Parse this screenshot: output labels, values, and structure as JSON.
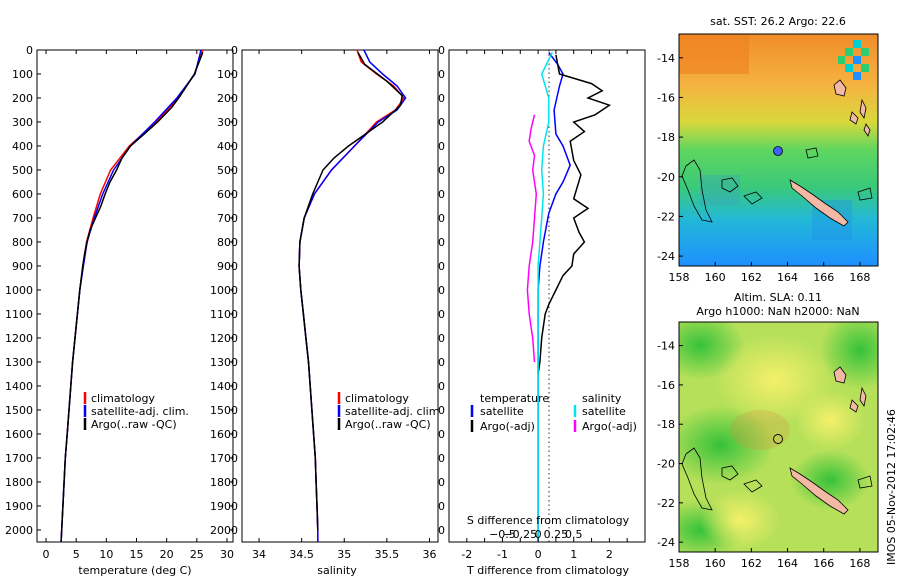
{
  "chart_data": {
    "type": "line",
    "depth": {
      "levels": [
        0,
        100,
        200,
        300,
        400,
        500,
        600,
        700,
        800,
        900,
        1000,
        1100,
        1200,
        1300,
        1400,
        1500,
        1600,
        1700,
        1800,
        1900,
        2000
      ],
      "ylim": [
        0,
        2050
      ]
    },
    "temperature": {
      "xlabel": "temperature (deg C)",
      "xlim": [
        -1.5,
        31
      ],
      "xticks": [
        0,
        5,
        10,
        15,
        20,
        25,
        30
      ],
      "legend": [
        "climatology",
        "satellite-adj. clim.",
        "Argo(..raw -QC)"
      ],
      "series": [
        {
          "name": "climatology",
          "color": "#ff0000",
          "points": [
            [
              26,
              0
            ],
            [
              24.6,
              100
            ],
            [
              22,
              200
            ],
            [
              18.2,
              300
            ],
            [
              13.8,
              400
            ],
            [
              10.7,
              500
            ],
            [
              9,
              600
            ],
            [
              7.8,
              700
            ],
            [
              6.7,
              800
            ],
            [
              6.1,
              900
            ],
            [
              5.6,
              1000
            ],
            [
              5.2,
              1100
            ],
            [
              4.8,
              1200
            ],
            [
              4.4,
              1300
            ],
            [
              4.1,
              1400
            ],
            [
              3.8,
              1500
            ],
            [
              3.5,
              1600
            ],
            [
              3.2,
              1700
            ],
            [
              3,
              1800
            ],
            [
              2.8,
              1900
            ],
            [
              2.6,
              2000
            ],
            [
              2.5,
              2050
            ]
          ]
        },
        {
          "name": "satellite-adj. clim.",
          "color": "#0000ff",
          "points": [
            [
              25.7,
              0
            ],
            [
              24.7,
              100
            ],
            [
              21.7,
              200
            ],
            [
              18,
              300
            ],
            [
              14,
              400
            ],
            [
              11.2,
              500
            ],
            [
              9.4,
              600
            ],
            [
              8,
              700
            ],
            [
              6.8,
              800
            ],
            [
              6.2,
              900
            ],
            [
              5.6,
              1000
            ],
            [
              5.2,
              1100
            ],
            [
              4.8,
              1200
            ],
            [
              4.4,
              1300
            ],
            [
              4.1,
              1400
            ],
            [
              3.8,
              1500
            ],
            [
              3.5,
              1600
            ],
            [
              3.2,
              1700
            ],
            [
              3,
              1800
            ],
            [
              2.8,
              1900
            ],
            [
              2.6,
              2000
            ],
            [
              2.5,
              2050
            ]
          ]
        },
        {
          "name": "Argo(..raw -QC)",
          "color": "#000000",
          "points": [
            [
              26,
              10
            ],
            [
              24.6,
              100
            ],
            [
              23.3,
              150
            ],
            [
              22,
              200
            ],
            [
              20.8,
              240
            ],
            [
              18.5,
              300
            ],
            [
              16.3,
              350
            ],
            [
              14,
              400
            ],
            [
              12.6,
              450
            ],
            [
              11.7,
              500
            ],
            [
              10.6,
              550
            ],
            [
              9.8,
              600
            ],
            [
              9.1,
              650
            ],
            [
              8.2,
              700
            ],
            [
              7.3,
              750
            ],
            [
              6.8,
              800
            ],
            [
              6.4,
              850
            ],
            [
              6.1,
              900
            ],
            [
              5.6,
              1000
            ],
            [
              5.2,
              1100
            ],
            [
              4.8,
              1200
            ],
            [
              4.4,
              1300
            ],
            [
              4.1,
              1400
            ],
            [
              3.8,
              1500
            ],
            [
              3.5,
              1600
            ],
            [
              3.2,
              1700
            ],
            [
              3,
              1800
            ],
            [
              2.8,
              1900
            ],
            [
              2.6,
              2000
            ],
            [
              2.5,
              2050
            ]
          ]
        }
      ]
    },
    "salinity": {
      "xlabel": "salinity",
      "xlim": [
        33.8,
        36.1
      ],
      "xticks": [
        34,
        34.5,
        35,
        35.5,
        36
      ],
      "xticklabels": [
        "34",
        "34.5",
        "35",
        "35.5",
        "36"
      ],
      "legend": [
        "climatology",
        "satellite-adj. clim",
        "Argo(..raw -QC)"
      ],
      "series": [
        {
          "name": "climatology",
          "color": "#ff0000",
          "points": [
            [
              35.15,
              0
            ],
            [
              35.2,
              50
            ],
            [
              35.38,
              100
            ],
            [
              35.58,
              150
            ],
            [
              35.7,
              200
            ],
            [
              35.6,
              250
            ],
            [
              35.38,
              300
            ],
            [
              35.12,
              400
            ],
            [
              34.85,
              500
            ],
            [
              34.65,
              600
            ],
            [
              34.53,
              700
            ],
            [
              34.48,
              800
            ],
            [
              34.47,
              900
            ],
            [
              34.49,
              1000
            ],
            [
              34.52,
              1100
            ],
            [
              34.55,
              1200
            ],
            [
              34.58,
              1300
            ],
            [
              34.6,
              1400
            ],
            [
              34.62,
              1500
            ],
            [
              34.64,
              1600
            ],
            [
              34.66,
              1700
            ],
            [
              34.67,
              1800
            ],
            [
              34.68,
              1900
            ],
            [
              34.69,
              2000
            ],
            [
              34.69,
              2050
            ]
          ]
        },
        {
          "name": "satellite-adj. clim",
          "color": "#0000ff",
          "points": [
            [
              35.23,
              0
            ],
            [
              35.3,
              50
            ],
            [
              35.45,
              100
            ],
            [
              35.62,
              150
            ],
            [
              35.72,
              200
            ],
            [
              35.62,
              250
            ],
            [
              35.4,
              300
            ],
            [
              35.12,
              400
            ],
            [
              34.85,
              500
            ],
            [
              34.65,
              600
            ],
            [
              34.53,
              700
            ],
            [
              34.48,
              800
            ],
            [
              34.47,
              900
            ],
            [
              34.49,
              1000
            ],
            [
              34.52,
              1100
            ],
            [
              34.55,
              1200
            ],
            [
              34.58,
              1300
            ],
            [
              34.6,
              1400
            ],
            [
              34.62,
              1500
            ],
            [
              34.64,
              1600
            ],
            [
              34.66,
              1700
            ],
            [
              34.67,
              1800
            ],
            [
              34.68,
              1900
            ],
            [
              34.69,
              2000
            ],
            [
              34.69,
              2050
            ]
          ]
        },
        {
          "name": "Argo(..raw -QC)",
          "color": "#000000",
          "points": [
            [
              35.16,
              10
            ],
            [
              35.24,
              60
            ],
            [
              35.5,
              130
            ],
            [
              35.68,
              190
            ],
            [
              35.66,
              230
            ],
            [
              35.45,
              300
            ],
            [
              35.25,
              350
            ],
            [
              35.05,
              400
            ],
            [
              34.88,
              450
            ],
            [
              34.75,
              500
            ],
            [
              34.63,
              600
            ],
            [
              34.53,
              700
            ],
            [
              34.48,
              800
            ],
            [
              34.47,
              900
            ],
            [
              34.49,
              1000
            ],
            [
              34.52,
              1100
            ],
            [
              34.55,
              1200
            ],
            [
              34.58,
              1300
            ],
            [
              34.6,
              1400
            ],
            [
              34.62,
              1500
            ],
            [
              34.64,
              1600
            ],
            [
              34.66,
              1700
            ],
            [
              34.67,
              1800
            ],
            [
              34.68,
              1900
            ],
            [
              34.69,
              2000
            ]
          ]
        }
      ]
    },
    "difference": {
      "xlabel_top": "S difference from climatology",
      "xlabel_bottom": "T difference from climatology",
      "t_xlim": [
        -2.5,
        3
      ],
      "t_xticks": [
        -2,
        -1.5,
        -1,
        -0.5,
        0,
        0.5,
        1,
        1.5,
        2,
        2.5
      ],
      "t_xticklabels": [
        "-2",
        "",
        "-1",
        "",
        "0",
        "",
        "1",
        "",
        "2",
        ""
      ],
      "s_ticks_t_equiv": [
        -1,
        -0.5,
        0,
        0.5,
        1
      ],
      "s_ticklabels": [
        "−0.5",
        "−0.25",
        "0",
        "0.25",
        "0.5"
      ],
      "legend_temperature": {
        "header": "temperature",
        "items": [
          "satellite",
          "Argo(-adj)"
        ]
      },
      "legend_salinity": {
        "header": "salinity",
        "items": [
          "satellite",
          "Argo(-adj)"
        ]
      },
      "series": [
        {
          "name": "T satellite",
          "color": "#0000ff",
          "points": [
            [
              0.3,
              10
            ],
            [
              0.55,
              60
            ],
            [
              0.7,
              100
            ],
            [
              0.6,
              150
            ],
            [
              0.45,
              250
            ],
            [
              0.5,
              350
            ],
            [
              0.7,
              400
            ],
            [
              0.9,
              480
            ],
            [
              0.7,
              550
            ],
            [
              0.5,
              600
            ],
            [
              0.3,
              680
            ],
            [
              0.15,
              800
            ],
            [
              0.05,
              900
            ],
            [
              0,
              1000
            ],
            [
              0,
              2050
            ]
          ]
        },
        {
          "name": "T Argo(-adj)",
          "color": "#000000",
          "points": [
            [
              0.5,
              20
            ],
            [
              0.6,
              100
            ],
            [
              1.5,
              140
            ],
            [
              1.8,
              170
            ],
            [
              1.4,
              200
            ],
            [
              2.0,
              230
            ],
            [
              1.6,
              270
            ],
            [
              1.0,
              300
            ],
            [
              1.3,
              340
            ],
            [
              0.9,
              380
            ],
            [
              1.0,
              460
            ],
            [
              1.2,
              520
            ],
            [
              1.1,
              570
            ],
            [
              1.0,
              620
            ],
            [
              1.4,
              660
            ],
            [
              1.0,
              700
            ],
            [
              1.15,
              760
            ],
            [
              1.3,
              800
            ],
            [
              1.0,
              850
            ],
            [
              0.95,
              900
            ],
            [
              0.7,
              940
            ],
            [
              0.5,
              1000
            ],
            [
              0.3,
              1060
            ],
            [
              0.2,
              1100
            ],
            [
              0.1,
              1200
            ],
            [
              0.05,
              1300
            ],
            [
              0,
              1350
            ]
          ]
        },
        {
          "name": "S satellite",
          "color": "#00e5ee",
          "points": [
            [
              0.4,
              10
            ],
            [
              0.1,
              100
            ],
            [
              0.3,
              200
            ],
            [
              0.3,
              300
            ],
            [
              0.15,
              400
            ],
            [
              0.1,
              500
            ],
            [
              0.15,
              600
            ],
            [
              0.1,
              700
            ],
            [
              0.05,
              800
            ],
            [
              0,
              900
            ],
            [
              0,
              2050
            ]
          ]
        },
        {
          "name": "S Argo(-adj)",
          "color": "#ff00ff",
          "points": [
            [
              -0.1,
              270
            ],
            [
              -0.2,
              330
            ],
            [
              -0.25,
              380
            ],
            [
              -0.1,
              440
            ],
            [
              -0.15,
              500
            ],
            [
              -0.05,
              600
            ],
            [
              -0.1,
              700
            ],
            [
              -0.15,
              800
            ],
            [
              -0.25,
              900
            ],
            [
              -0.3,
              1000
            ],
            [
              -0.25,
              1100
            ],
            [
              -0.15,
              1200
            ],
            [
              -0.1,
              1300
            ]
          ]
        }
      ]
    },
    "maps": [
      {
        "title": "sat. SST: 26.2 Argo: 22.6",
        "xticks": [
          158,
          160,
          162,
          164,
          166,
          168
        ],
        "yticks": [
          -14,
          -16,
          -18,
          -20,
          -22,
          -24
        ],
        "lon_range": [
          158,
          169
        ],
        "lat_range": [
          -24.5,
          -12.8
        ]
      },
      {
        "title_line1": "Altim. SLA: 0.11",
        "title_line2": "Argo h1000: NaN h2000: NaN",
        "xticks": [
          158,
          160,
          162,
          164,
          166,
          168
        ],
        "yticks": [
          -14,
          -16,
          -18,
          -20,
          -22,
          -24
        ],
        "lon_range": [
          158,
          169
        ],
        "lat_range": [
          -24.5,
          -12.8
        ]
      }
    ],
    "float_position": {
      "lon": 163.3,
      "lat": -18.5
    }
  },
  "stamp": "IMOS 05-Nov-2012 17:02:46"
}
